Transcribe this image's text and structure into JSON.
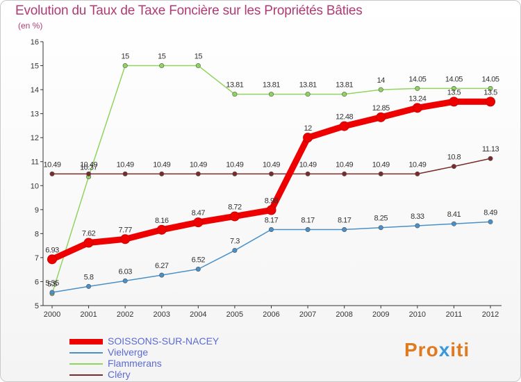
{
  "header": {
    "title": "Evolution du Taux de Taxe Foncière sur les Propriétés Bâties",
    "subtitle": "(en %)"
  },
  "brand": {
    "prefix": "Pro",
    "highlight": "x",
    "suffix": "iti"
  },
  "chart_data": {
    "type": "line",
    "title": "Evolution du Taux de Taxe Foncière sur les Propriétés Bâties",
    "ylabel": "(en %)",
    "xlabel": "",
    "x": [
      2000,
      2001,
      2002,
      2003,
      2004,
      2005,
      2006,
      2007,
      2008,
      2009,
      2010,
      2011,
      2012
    ],
    "ylim": [
      5,
      16
    ],
    "yticks": [
      5,
      6,
      7,
      8,
      9,
      10,
      11,
      12,
      13,
      14,
      15,
      16
    ],
    "grid": false,
    "legend_position": "bottom-left",
    "series": [
      {
        "name": "SOISSONS-SUR-NACEY",
        "color": "#ee0000",
        "values": [
          6.93,
          7.62,
          7.77,
          8.16,
          8.47,
          8.72,
          8.98,
          12,
          12.48,
          12.85,
          13.24,
          13.5,
          13.5
        ],
        "labels": [
          "6.93",
          "7.62",
          "7.77",
          "8.16",
          "8.47",
          "8.72",
          "8.98",
          "12",
          "12.48",
          "12.85",
          "13.24",
          "13.5",
          "13.5"
        ]
      },
      {
        "name": "Vielverge",
        "color": "#4a90c8",
        "values": [
          5.55,
          5.8,
          6.03,
          6.27,
          6.52,
          7.3,
          8.17,
          8.17,
          8.17,
          8.25,
          8.33,
          8.41,
          8.49
        ],
        "labels": [
          "5.55",
          "5.8",
          "6.03",
          "6.27",
          "6.52",
          "7.3",
          "8.17",
          "8.17",
          "8.17",
          "8.25",
          "8.33",
          "8.41",
          "8.49"
        ]
      },
      {
        "name": "Flammerans",
        "color": "#8fd45c",
        "values": [
          5.5,
          10.37,
          15,
          15,
          15,
          13.81,
          13.81,
          13.81,
          13.81,
          14,
          14.05,
          14.05,
          14.05
        ],
        "labels": [
          "5.5",
          "10.37",
          "15",
          "15",
          "15",
          "13.81",
          "13.81",
          "13.81",
          "13.81",
          "14",
          "14.05",
          "14.05",
          "14.05"
        ]
      },
      {
        "name": "Cléry",
        "color": "#7a2a2a",
        "values": [
          10.49,
          10.49,
          10.49,
          10.49,
          10.49,
          10.49,
          10.49,
          10.49,
          10.49,
          10.49,
          10.49,
          10.8,
          11.13
        ],
        "labels": [
          "10.49",
          "10.49",
          "10.49",
          "10.49",
          "10.49",
          "10.49",
          "10.49",
          "10.49",
          "10.49",
          "10.49",
          "10.49",
          "10.8",
          "11.13"
        ]
      }
    ]
  }
}
